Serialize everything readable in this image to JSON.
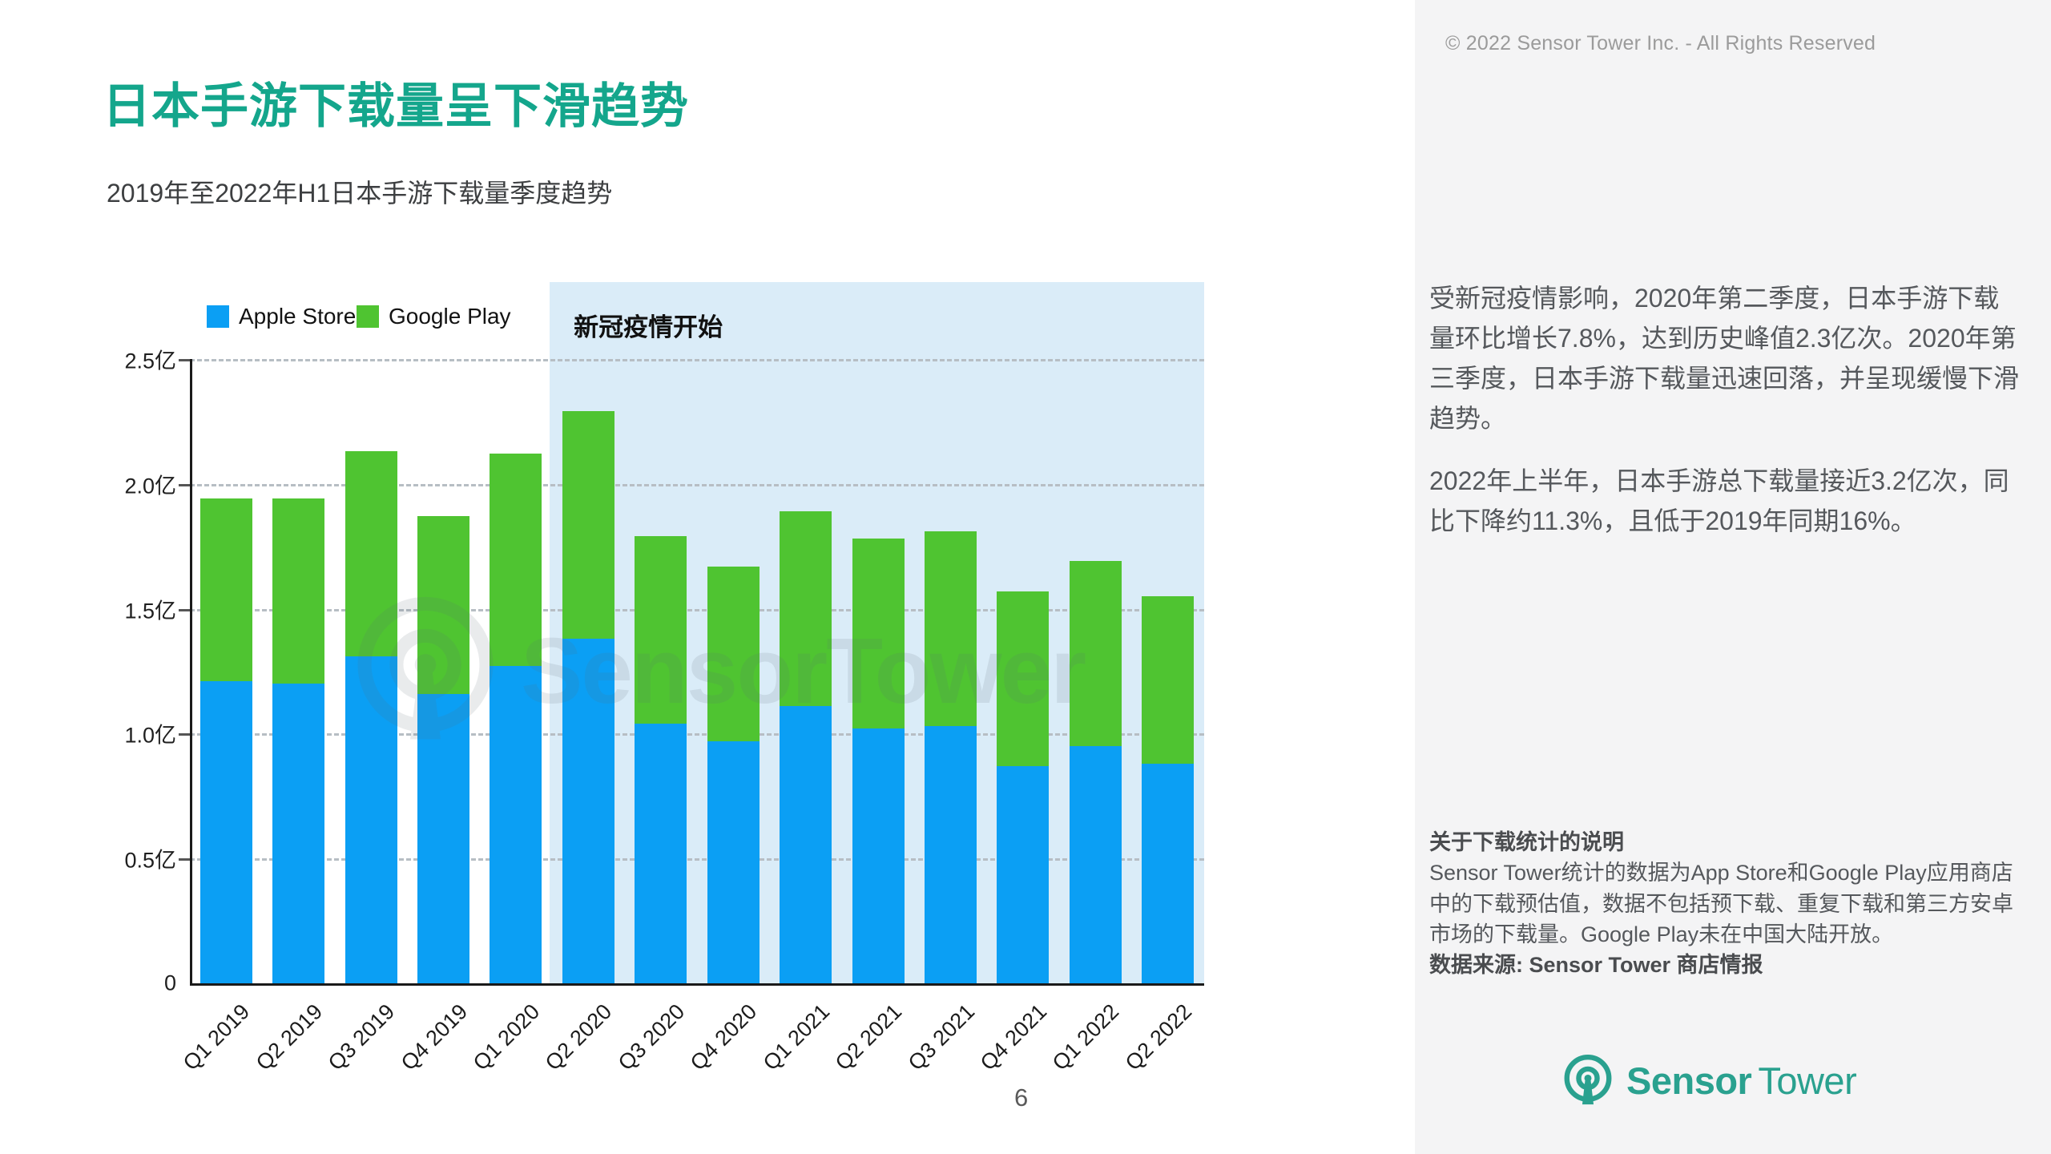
{
  "header": {
    "title": "日本手游下载量呈下滑趋势",
    "subtitle": "2019年至2022年H1日本手游下载量季度趋势",
    "copyright": "© 2022 Sensor Tower Inc. - All Rights Reserved"
  },
  "page_number": "6",
  "colors": {
    "title_teal": "#14a68c",
    "apple_blue": "#0b9ff4",
    "google_green": "#4fc431",
    "covid_highlight": "#daecf8",
    "panel_bg": "#f4f4f5",
    "logo_teal": "#2aa18f"
  },
  "chart_data": {
    "type": "bar",
    "stacked": true,
    "title": "2019年至2022年H1日本手游下载量季度趋势",
    "unit": "亿",
    "categories": [
      "Q1 2019",
      "Q2 2019",
      "Q3 2019",
      "Q4 2019",
      "Q1 2020",
      "Q2 2020",
      "Q3 2020",
      "Q4 2020",
      "Q1 2021",
      "Q2 2021",
      "Q3 2021",
      "Q4 2021",
      "Q1 2022",
      "Q2 2022"
    ],
    "series": [
      {
        "name": "Apple Store",
        "color": "#0b9ff4",
        "values": [
          1.21,
          1.2,
          1.31,
          1.16,
          1.27,
          1.38,
          1.04,
          0.97,
          1.11,
          1.02,
          1.03,
          0.87,
          0.95,
          0.88
        ]
      },
      {
        "name": "Google Play",
        "color": "#4fc431",
        "values": [
          0.73,
          0.74,
          0.82,
          0.71,
          0.85,
          0.91,
          0.75,
          0.7,
          0.78,
          0.76,
          0.78,
          0.7,
          0.74,
          0.67
        ]
      }
    ],
    "totals": [
      1.94,
      1.94,
      2.13,
      1.87,
      2.12,
      2.29,
      1.79,
      1.67,
      1.89,
      1.78,
      1.81,
      1.57,
      1.69,
      1.55
    ],
    "ylim": [
      0,
      2.5
    ],
    "ytick_labels": [
      "0",
      "0.5亿",
      "1.0亿",
      "1.5亿",
      "2.0亿",
      "2.5亿"
    ],
    "grid": "horizontal dashed",
    "legend_position": "top-left",
    "annotation": {
      "text": "新冠疫情开始",
      "highlight_from_category": "Q2 2020"
    }
  },
  "watermark": {
    "text": "SensorTower"
  },
  "panel": {
    "paragraph1": "受新冠疫情影响，2020年第二季度，日本手游下载量环比增长7.8%，达到历史峰值2.3亿次。2020年第三季度，日本手游下载量迅速回落，并呈现缓慢下滑趋势。",
    "paragraph2": "2022年上半年，日本手游总下载量接近3.2亿次，同比下降约11.3%，且低于2019年同期16%。",
    "notes_heading": "关于下载统计的说明",
    "notes_body": "Sensor Tower统计的数据为App Store和Google Play应用商店中的下载预估值，数据不包括预下载、重复下载和第三方安卓市场的下载量。Google Play未在中国大陆开放。",
    "notes_source": "数据来源: Sensor Tower 商店情报"
  },
  "logo": {
    "word1": "Sensor",
    "word2": "Tower"
  }
}
